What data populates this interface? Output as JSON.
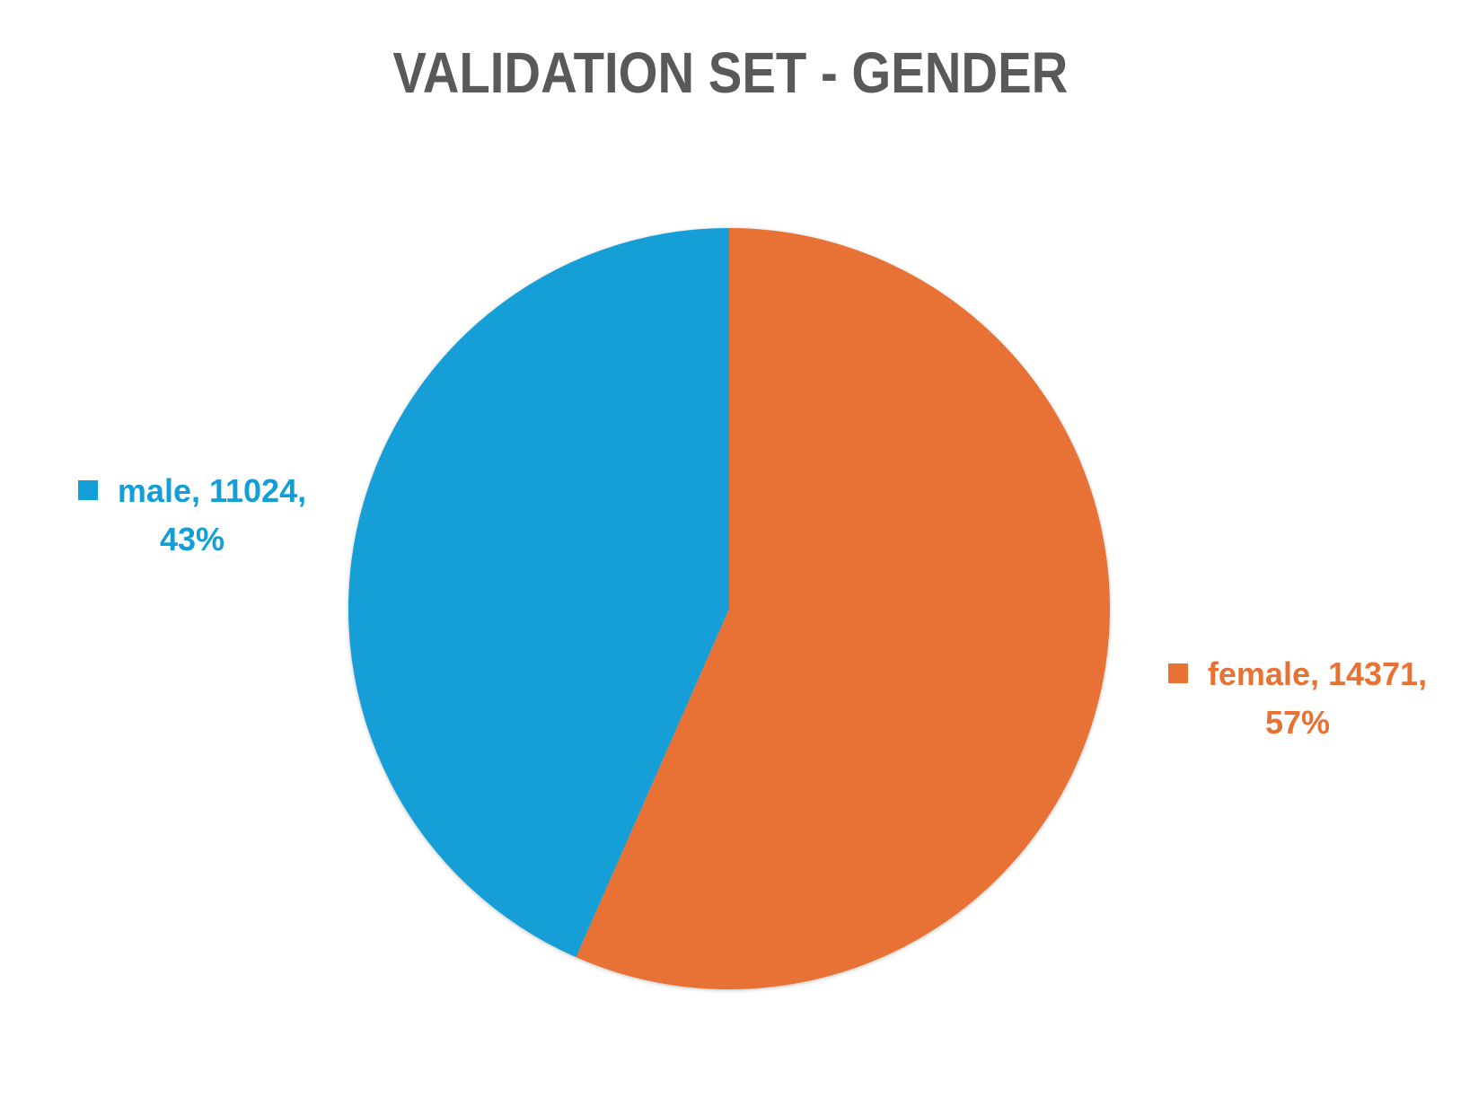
{
  "chart_data": {
    "type": "pie",
    "title": "VALIDATION SET - GENDER",
    "categories": [
      "male",
      "female"
    ],
    "values": [
      11024,
      14371
    ],
    "percentages": [
      "43%",
      "57%"
    ],
    "colors": [
      "#129ED6",
      "#E87234"
    ],
    "start_angle_deg": 0,
    "direction": "clockwise-from-top",
    "slice_order": [
      "female",
      "male"
    ],
    "data_labels": [
      {
        "line1": "male, 11024,",
        "line2": "43%"
      },
      {
        "line1": "female, 14371,",
        "line2": "57%"
      }
    ],
    "legend": "none"
  }
}
